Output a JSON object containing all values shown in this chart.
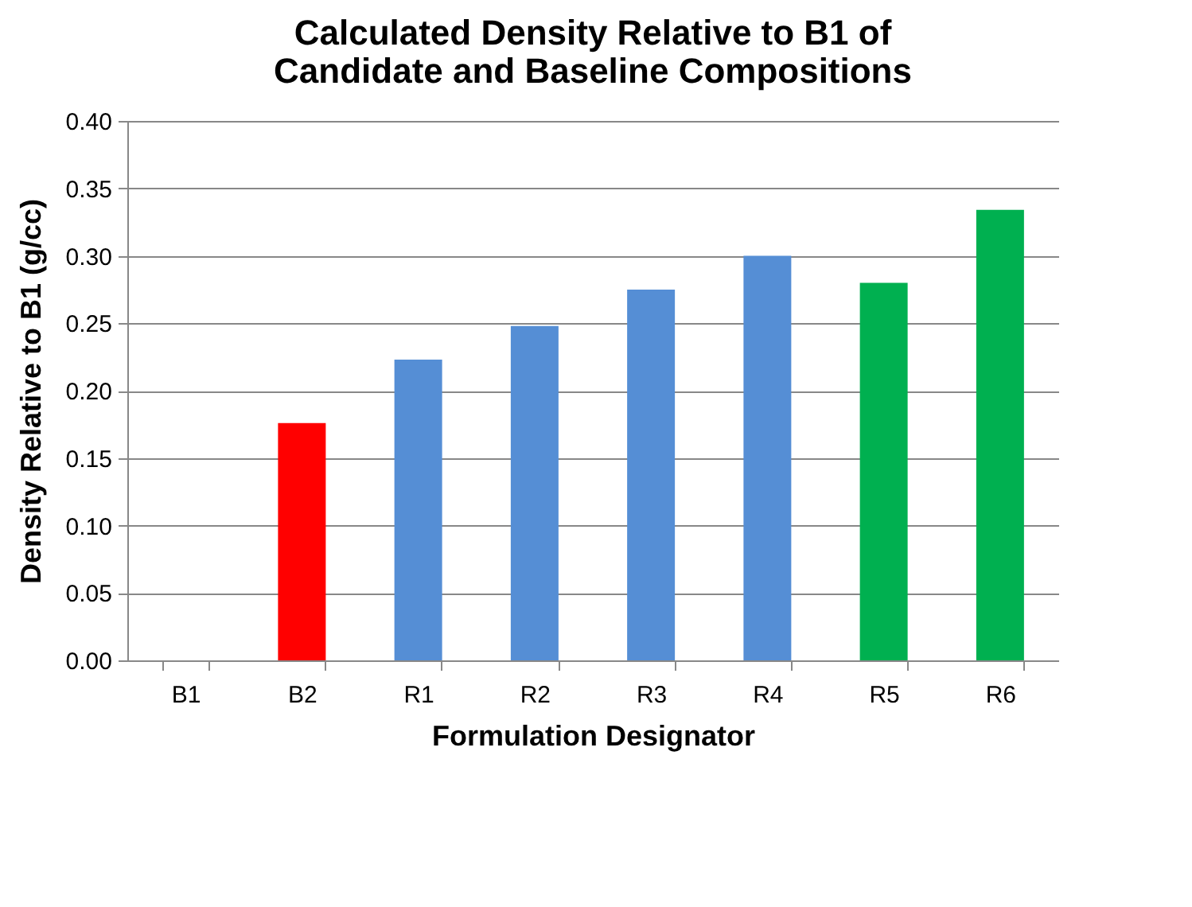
{
  "chart_data": {
    "type": "bar",
    "title": "Calculated Density Relative to B1 of Candidate and Baseline Compositions",
    "xlabel": "Formulation Designator",
    "ylabel": "Density Relative to B1 (g/cc)",
    "categories": [
      "B1",
      "B2",
      "R1",
      "R2",
      "R3",
      "R4",
      "R5",
      "R6"
    ],
    "values": [
      0,
      0.176,
      0.223,
      0.248,
      0.275,
      0.3,
      0.28,
      0.334
    ],
    "colors": [
      "#558ed5",
      "#ff0000",
      "#558ed5",
      "#558ed5",
      "#558ed5",
      "#558ed5",
      "#00b050",
      "#00b050"
    ],
    "ylim": [
      0,
      0.4
    ],
    "yticks": [
      {
        "value": 0,
        "label": "0.00"
      },
      {
        "value": 0.05,
        "label": "0.05"
      },
      {
        "value": 0.1,
        "label": "0.10"
      },
      {
        "value": 0.15,
        "label": "0.15"
      },
      {
        "value": 0.2,
        "label": "0.20"
      },
      {
        "value": 0.25,
        "label": "0.25"
      },
      {
        "value": 0.3,
        "label": "0.30"
      },
      {
        "value": 0.35,
        "label": "0.35"
      },
      {
        "value": 0.4,
        "label": "0.40"
      }
    ],
    "grid": "y",
    "legend": false
  }
}
